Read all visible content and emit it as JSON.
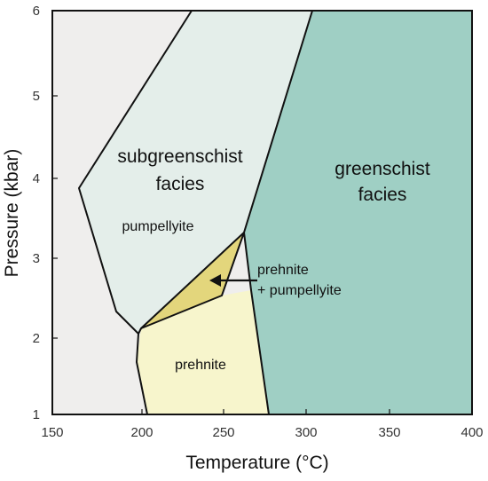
{
  "diagram": {
    "x_axis": {
      "title": "Temperature (°C)",
      "ticks": [
        "150",
        "200",
        "250",
        "300",
        "350",
        "400"
      ]
    },
    "y_axis": {
      "title": "Pressure (kbar)",
      "ticks": [
        "1",
        "2",
        "3",
        "4",
        "5",
        "6"
      ]
    },
    "regions": {
      "subgreenschist": {
        "line1": "subgreenschist",
        "line2": "facies",
        "color": "#e4eeea"
      },
      "pumpellyite": {
        "label": "pumpellyite"
      },
      "greenschist": {
        "line1": "greenschist",
        "line2": "facies",
        "color": "#9fcfc4"
      },
      "prehnite_pumpellyite": {
        "line1": "prehnite",
        "line2": "+ pumpellyite",
        "color": "#e3d67c"
      },
      "prehnite": {
        "label": "prehnite",
        "color": "#f7f5cc"
      },
      "background": {
        "color": "#efeeed"
      }
    }
  }
}
